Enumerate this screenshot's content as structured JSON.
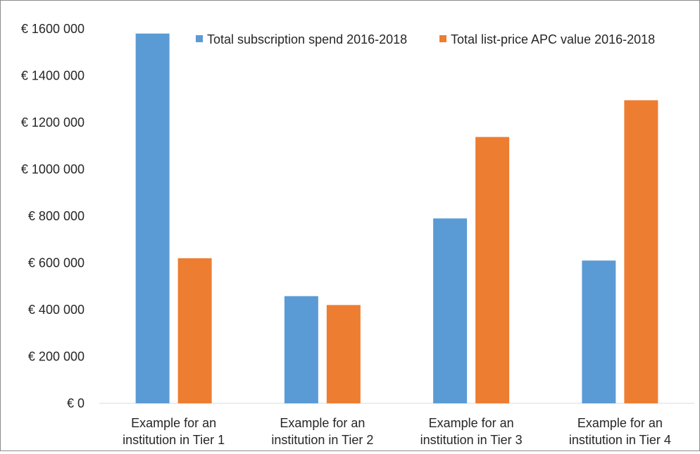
{
  "chart_data": {
    "type": "bar",
    "title": "",
    "xlabel": "",
    "ylabel": "",
    "ylim": [
      0,
      1600000
    ],
    "yticks": [
      0,
      200000,
      400000,
      600000,
      800000,
      1000000,
      1200000,
      1400000,
      1600000
    ],
    "ytick_labels": [
      "€ 0",
      "€ 200 000",
      "€ 400 000",
      "€ 600 000",
      "€ 800 000",
      "€ 1000 000",
      "€ 1200 000",
      "€ 1400 000",
      "€ 1600 000"
    ],
    "categories": [
      [
        "Example for an",
        "institution in Tier 1"
      ],
      [
        "Example for an",
        "institution in Tier 2"
      ],
      [
        "Example for an",
        "institution in Tier 3"
      ],
      [
        "Example for an",
        "institution in Tier 4"
      ]
    ],
    "series": [
      {
        "name": "Total subscription spend 2016-2018",
        "color": "#5b9bd5",
        "values": [
          1580000,
          458000,
          790000,
          610000
        ]
      },
      {
        "name": "Total list-price APC value 2016-2018",
        "color": "#ed7d31",
        "values": [
          620000,
          420000,
          1138000,
          1295000
        ]
      }
    ],
    "grid": false,
    "legend_position": "top-right"
  }
}
